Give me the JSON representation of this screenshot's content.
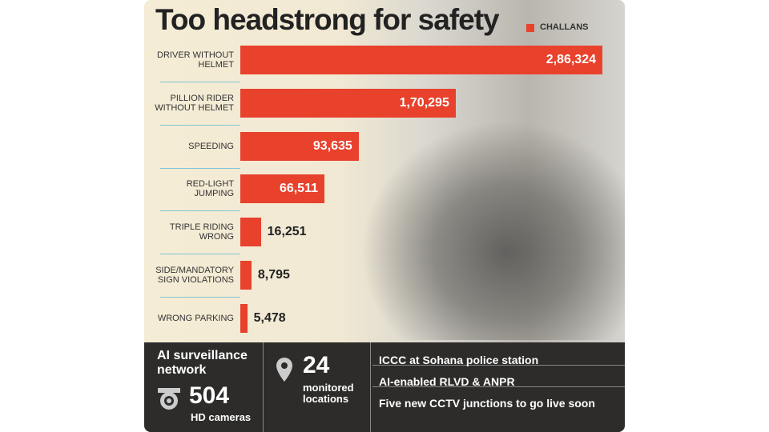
{
  "chart_data": {
    "type": "bar",
    "orientation": "horizontal",
    "title": "Too headstrong for safety",
    "categories": [
      "DRIVER WITHOUT HELMET",
      "PILLION RIDER WITHOUT HELMET",
      "SPEEDING",
      "RED-LIGHT JUMPING",
      "TRIPLE RIDING WRONG",
      "SIDE/MANDATORY SIGN VIOLATIONS",
      "WRONG PARKING"
    ],
    "series": [
      {
        "name": "CHALLANS",
        "color": "#e8412c",
        "values": [
          286324,
          170295,
          93635,
          66511,
          16251,
          8795,
          5478
        ],
        "value_labels": [
          "2,86,324",
          "1,70,295",
          "93,635",
          "66,511",
          "16,251",
          "8,795",
          "5,478"
        ]
      }
    ],
    "legend": "top-right"
  },
  "panel": {
    "surveillance": {
      "title": "AI surveillance network",
      "count": "504",
      "unit": "HD cameras"
    },
    "locations": {
      "count": "24",
      "unit": "monitored locations"
    },
    "notes": [
      "ICCC at Sohana police station",
      "AI-enabled RLVD & ANPR",
      "Five new CCTV junctions to go live soon"
    ]
  }
}
